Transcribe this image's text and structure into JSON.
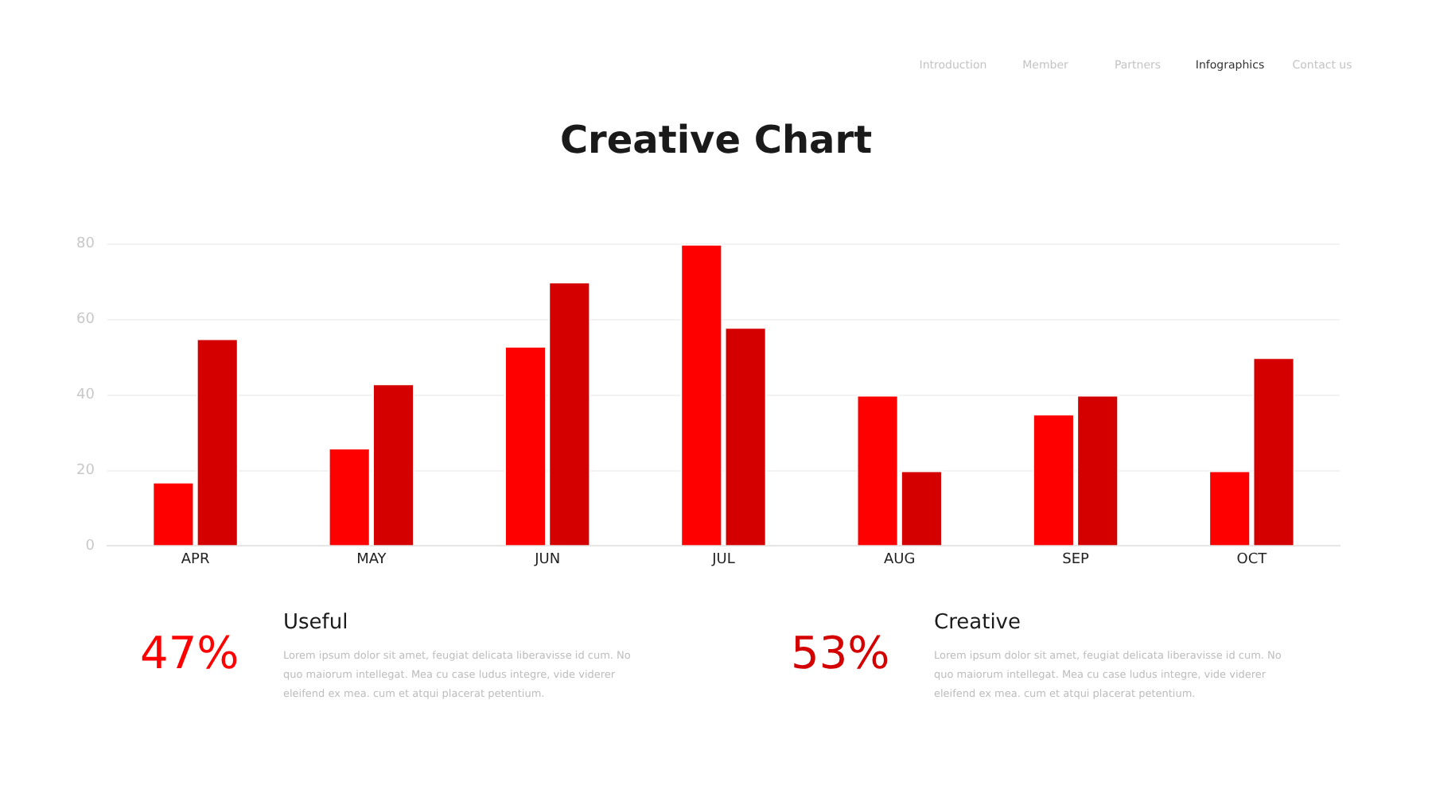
{
  "chart_data": {
    "type": "bar",
    "title": "Creative Chart",
    "categories": [
      "APR",
      "MAY",
      "JUN",
      "JUL",
      "AUG",
      "SEP",
      "OCT"
    ],
    "series": [
      {
        "color": "#ff0000",
        "values": [
          17,
          26,
          53,
          80,
          40,
          35,
          20
        ]
      },
      {
        "color": "#d40000",
        "values": [
          55,
          43,
          70,
          58,
          20,
          40,
          50
        ]
      }
    ],
    "ylim": [
      0,
      80
    ],
    "yticks": [
      0,
      20,
      40,
      60,
      80
    ],
    "grid": "y",
    "legend": false,
    "annotations": [
      "Introduction",
      "Member",
      "Partners",
      "Infographics",
      "Contact us",
      "47%",
      "Useful",
      "Lorem ipsum dolor sit amet, feugiat delicata liberavisse id cum. No quo maiorum intellegat. Mea cu case ludus integre, vide viderer eleifend ex mea. cum et atqui placerat petentium.",
      "53%",
      "Creative",
      "Lorem ipsum dolor sit amet, feugiat delicata liberavisse id cum. No quo maiorum intellegat. Mea cu case ludus integre, vide viderer eleifend ex mea. cum et atqui placerat petentium."
    ]
  }
}
